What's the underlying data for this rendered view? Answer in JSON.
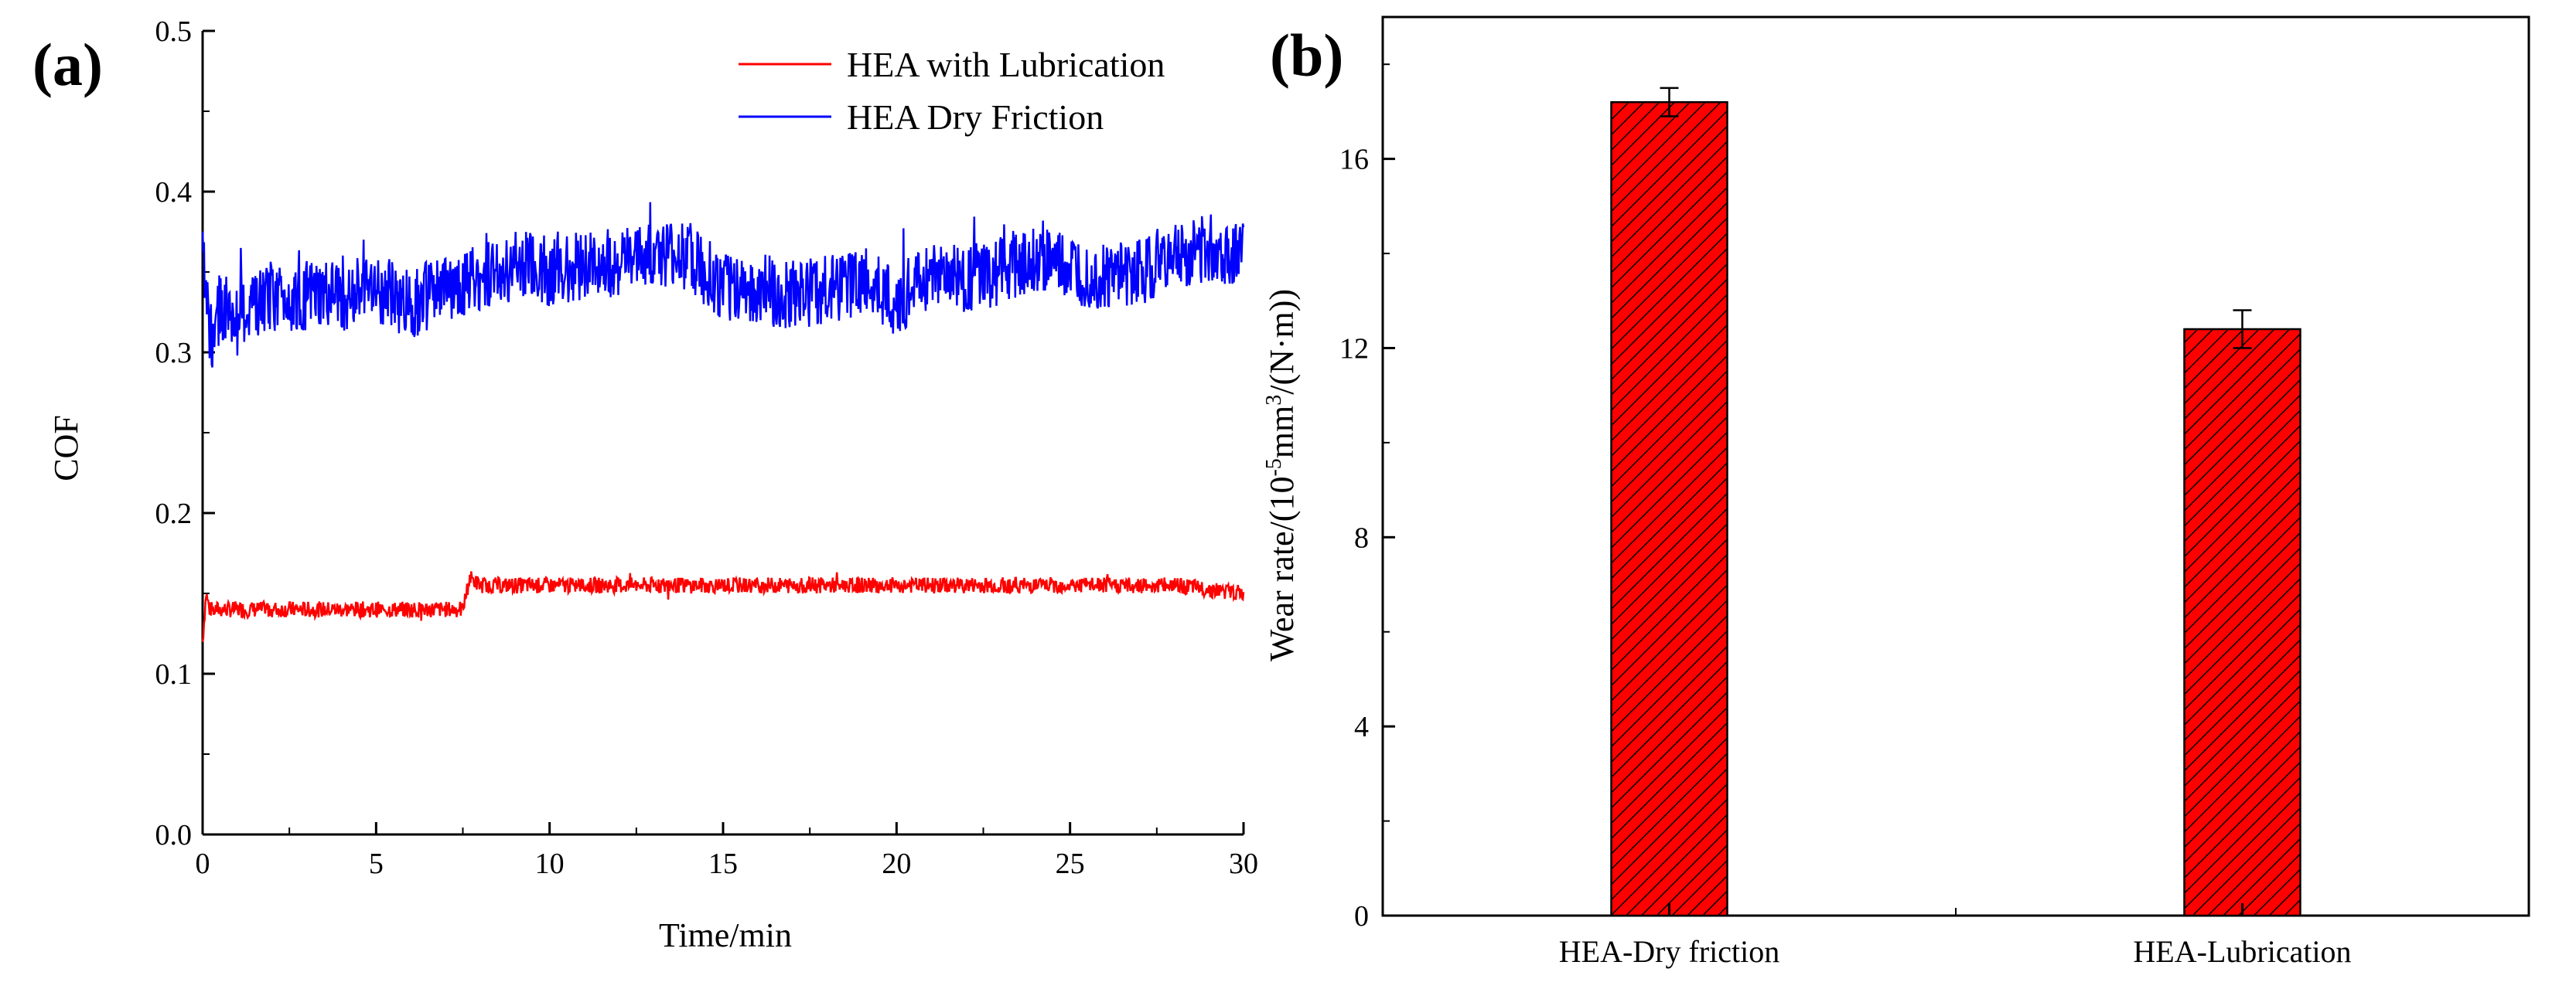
{
  "chart_data": [
    {
      "panel": "(a)",
      "type": "line",
      "title": "",
      "xlabel": "Time/min",
      "ylabel": "COF",
      "xlim": [
        0,
        30
      ],
      "ylim": [
        0.0,
        0.5
      ],
      "xticks": [
        "0",
        "5",
        "10",
        "15",
        "20",
        "25",
        "30"
      ],
      "yticks": [
        "0.0",
        "0.1",
        "0.2",
        "0.3",
        "0.4",
        "0.5"
      ],
      "legend_position": "top-right",
      "grid": false,
      "series": [
        {
          "name": "HEA with Lubrication",
          "color": "#ff0000",
          "x": [
            0,
            0.1,
            0.2,
            1,
            2,
            3,
            4,
            5,
            6,
            7,
            7.5,
            7.7,
            8,
            9,
            10,
            12,
            14,
            15,
            16,
            18,
            20,
            22,
            24,
            26,
            28,
            30
          ],
          "values": [
            0.12,
            0.15,
            0.14,
            0.14,
            0.14,
            0.14,
            0.14,
            0.14,
            0.14,
            0.14,
            0.14,
            0.16,
            0.155,
            0.155,
            0.155,
            0.155,
            0.155,
            0.155,
            0.155,
            0.155,
            0.155,
            0.155,
            0.155,
            0.155,
            0.155,
            0.15
          ],
          "noise": 0.005
        },
        {
          "name": "HEA Dry Friction",
          "color": "#0000ff",
          "x": [
            0,
            0.1,
            0.3,
            0.5,
            1,
            2,
            3,
            4,
            5,
            6,
            7,
            8,
            9,
            10,
            11,
            12,
            13,
            14,
            15,
            16,
            17,
            18,
            19,
            20,
            21,
            22,
            23,
            24,
            25,
            26,
            27,
            28,
            29,
            30
          ],
          "values": [
            0.38,
            0.33,
            0.3,
            0.33,
            0.32,
            0.335,
            0.335,
            0.335,
            0.34,
            0.33,
            0.34,
            0.345,
            0.355,
            0.35,
            0.355,
            0.355,
            0.36,
            0.36,
            0.34,
            0.34,
            0.335,
            0.34,
            0.345,
            0.33,
            0.35,
            0.345,
            0.35,
            0.36,
            0.35,
            0.345,
            0.35,
            0.36,
            0.365,
            0.36
          ],
          "noise": 0.022
        }
      ]
    },
    {
      "panel": "(b)",
      "type": "bar",
      "title": "",
      "xlabel": "",
      "ylabel_parts": [
        "Wear rate/(10",
        "-5",
        "mm",
        "3",
        "/(N·m))"
      ],
      "categories": [
        "HEA-Dry friction",
        "HEA-Lubrication"
      ],
      "values": [
        17.2,
        12.4
      ],
      "errors": [
        0.3,
        0.4
      ],
      "ylim": [
        0,
        19
      ],
      "yticks": [
        "0",
        "4",
        "8",
        "12",
        "16"
      ],
      "bar_color": "#ff0000",
      "bar_pattern": "diagonal-hatch",
      "grid": false
    }
  ]
}
